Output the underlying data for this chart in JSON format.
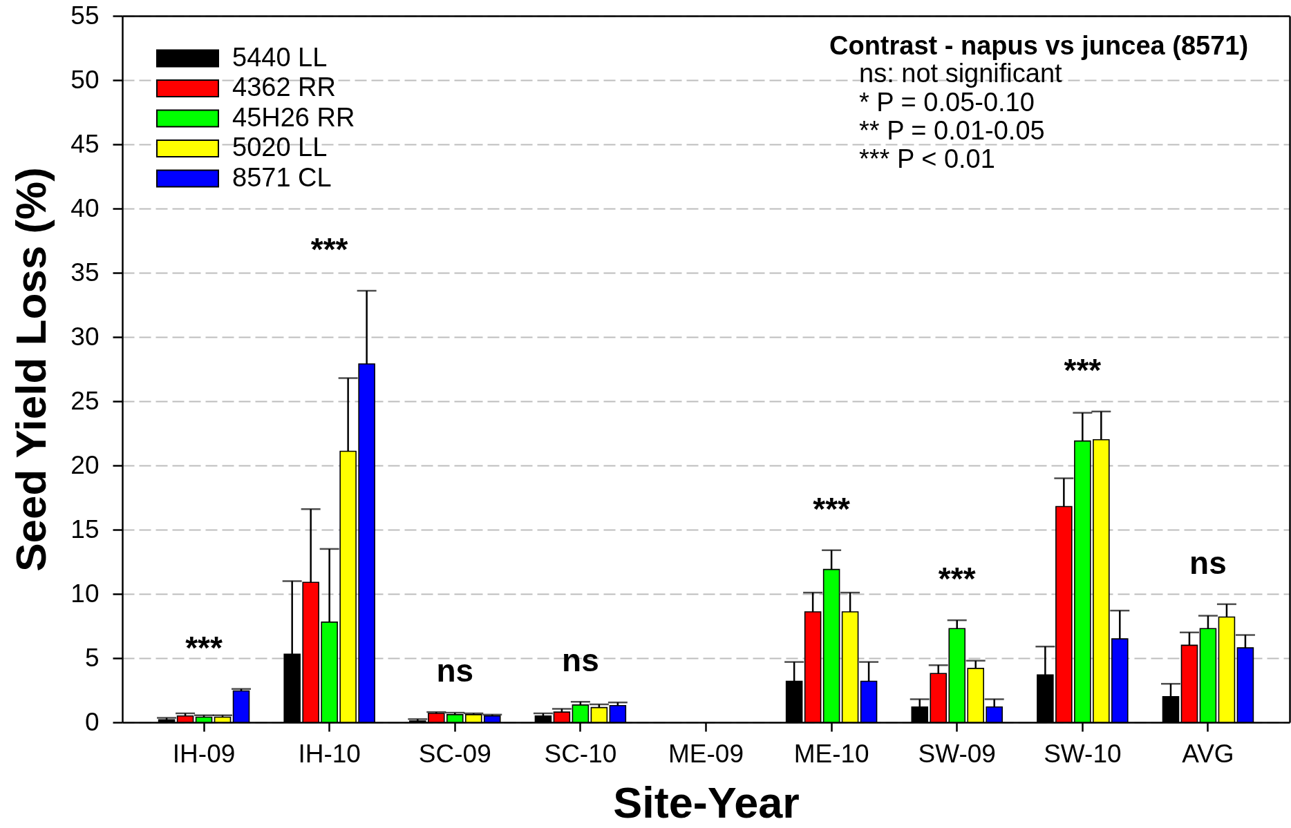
{
  "chart_data": {
    "type": "bar",
    "xlabel": "Site-Year",
    "ylabel": "Seed Yield Loss (%)",
    "categories": [
      "IH-09",
      "IH-10",
      "SC-09",
      "SC-10",
      "ME-09",
      "ME-10",
      "SW-09",
      "SW-10",
      "AVG"
    ],
    "series": [
      {
        "name": "5440 LL",
        "color": "#000000",
        "values": [
          0.2,
          5.3,
          0.1,
          0.5,
          null,
          3.2,
          1.2,
          3.7,
          2.0
        ],
        "errors": [
          [
            0.2,
            0.35
          ],
          [
            5.3,
            11.0
          ],
          [
            0.1,
            0.25
          ],
          [
            0.5,
            0.7
          ],
          null,
          [
            3.2,
            4.7
          ],
          [
            1.2,
            1.8
          ],
          [
            3.7,
            5.9
          ],
          [
            2.0,
            3.0
          ]
        ]
      },
      {
        "name": "4362 RR",
        "color": "#ff0000",
        "values": [
          0.5,
          10.9,
          0.7,
          0.8,
          null,
          8.6,
          3.8,
          16.8,
          6.0
        ],
        "errors": [
          [
            0.5,
            0.7
          ],
          [
            10.9,
            16.6
          ],
          [
            0.7,
            0.8
          ],
          [
            0.8,
            1.05
          ],
          null,
          [
            8.6,
            10.1
          ],
          [
            3.8,
            4.45
          ],
          [
            16.8,
            19.0
          ],
          [
            6.0,
            7.0
          ]
        ]
      },
      {
        "name": "45H26 RR",
        "color": "#00ff00",
        "values": [
          0.4,
          7.8,
          0.6,
          1.35,
          null,
          11.9,
          7.3,
          21.9,
          7.3
        ],
        "errors": [
          [
            0.4,
            0.55
          ],
          [
            7.8,
            13.5
          ],
          [
            0.6,
            0.75
          ],
          [
            1.35,
            1.6
          ],
          null,
          [
            11.9,
            13.4
          ],
          [
            7.3,
            7.95
          ],
          [
            21.9,
            24.1
          ],
          [
            7.3,
            8.3
          ]
        ]
      },
      {
        "name": "5020 LL",
        "color": "#ffff00",
        "values": [
          0.4,
          21.1,
          0.6,
          1.15,
          null,
          8.6,
          4.2,
          22.0,
          8.2
        ],
        "errors": [
          [
            0.4,
            0.55
          ],
          [
            21.1,
            26.8
          ],
          [
            0.6,
            0.7
          ],
          [
            1.15,
            1.4
          ],
          null,
          [
            8.6,
            10.1
          ],
          [
            4.2,
            4.8
          ],
          [
            22.0,
            24.2
          ],
          [
            8.2,
            9.2
          ]
        ]
      },
      {
        "name": "8571 CL",
        "color": "#0000ff",
        "values": [
          2.45,
          27.9,
          0.5,
          1.3,
          null,
          3.2,
          1.2,
          6.5,
          5.8
        ],
        "errors": [
          [
            2.45,
            2.6
          ],
          [
            27.9,
            33.6
          ],
          [
            0.5,
            0.6
          ],
          [
            1.3,
            1.55
          ],
          null,
          [
            3.2,
            4.7
          ],
          [
            1.2,
            1.8
          ],
          [
            6.5,
            8.7
          ],
          [
            5.8,
            6.8
          ]
        ]
      }
    ],
    "ylim": [
      0,
      55
    ],
    "yticks": [
      0,
      5,
      10,
      15,
      20,
      25,
      30,
      35,
      40,
      45,
      50,
      55
    ],
    "grid": "y",
    "legend": "top left",
    "annotations": [
      "***",
      "***",
      "ns",
      "ns",
      "***",
      "***",
      "***",
      "ns",
      "Contrast - napus vs juncea (8571)",
      "ns: not significant",
      "* P = 0.05-0.10",
      "** P = 0.01-0.05",
      "*** P < 0.01"
    ]
  }
}
